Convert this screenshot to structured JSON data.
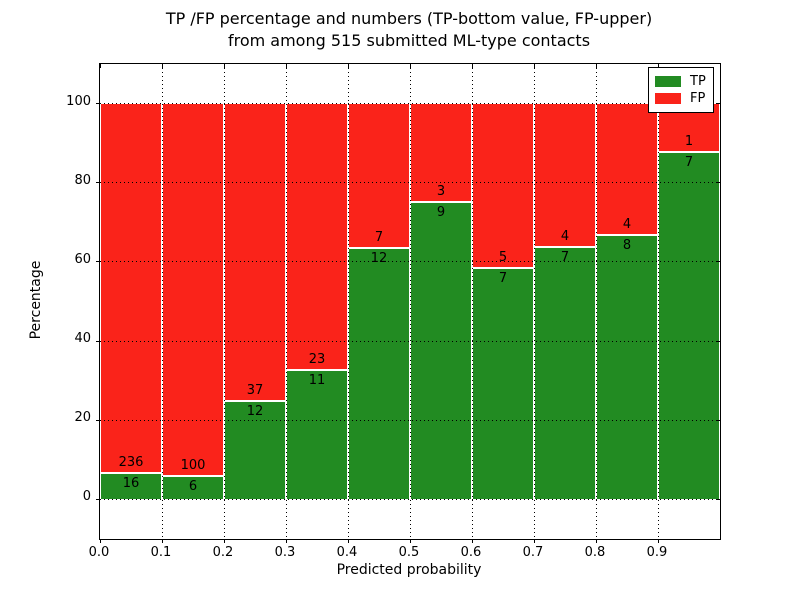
{
  "title": {
    "line1": "TP /FP percentage and numbers (TP-bottom value, FP-upper)",
    "line2": "from among 515 submitted ML-type contacts"
  },
  "chart_data": {
    "type": "bar",
    "stacked": true,
    "normalized": "each bar scaled to 100%",
    "total_contacts": 515,
    "bin_edges": [
      0.0,
      0.1,
      0.2,
      0.3,
      0.4,
      0.5,
      0.6,
      0.7,
      0.8,
      0.9,
      1.0
    ],
    "categories": [
      "0.0-0.1",
      "0.1-0.2",
      "0.2-0.3",
      "0.3-0.4",
      "0.4-0.5",
      "0.5-0.6",
      "0.6-0.7",
      "0.7-0.8",
      "0.8-0.9",
      "0.9-1.0"
    ],
    "series": [
      {
        "name": "TP",
        "color": "#228b22",
        "counts": [
          16,
          6,
          12,
          11,
          12,
          9,
          7,
          7,
          8,
          7
        ]
      },
      {
        "name": "FP",
        "color": "#fa231a",
        "counts": [
          236,
          100,
          37,
          23,
          7,
          3,
          5,
          4,
          4,
          1
        ]
      }
    ],
    "tp_percent": [
      6.3,
      5.7,
      24.5,
      32.4,
      63.2,
      75.0,
      58.3,
      63.6,
      66.7,
      87.5
    ],
    "xlabel": "Predicted probability",
    "ylabel": "Percentage",
    "x_tick_labels": [
      "0.0",
      "0.1",
      "0.2",
      "0.3",
      "0.4",
      "0.5",
      "0.6",
      "0.7",
      "0.8",
      "0.9"
    ],
    "y_ticks": [
      0,
      20,
      40,
      60,
      80,
      100
    ],
    "xlim": [
      0.0,
      1.0
    ],
    "ylim": [
      -10,
      110
    ],
    "grid": true,
    "legend": {
      "position": "upper right",
      "entries": [
        {
          "label": "TP",
          "color": "#228b22"
        },
        {
          "label": "FP",
          "color": "#fa231a"
        }
      ]
    }
  }
}
